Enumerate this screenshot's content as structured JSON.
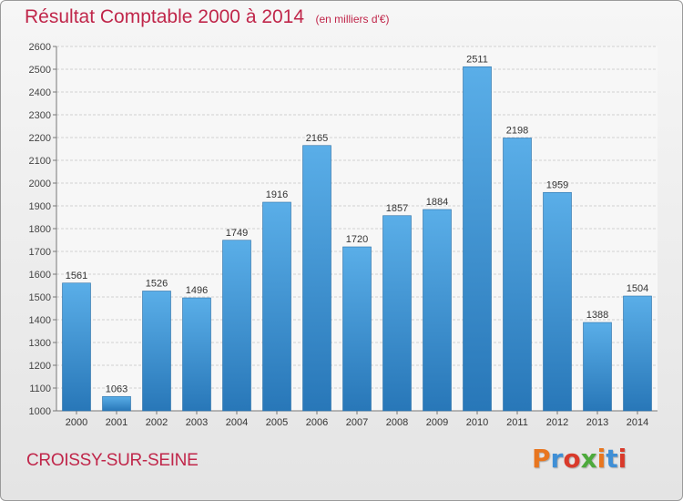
{
  "header": {
    "title": "Résultat Comptable 2000 à 2014",
    "subtitle": "(en milliers d'€)"
  },
  "footer": {
    "city": "CROISSY-SUR-SEINE",
    "logo_text": "Proxiti"
  },
  "colors": {
    "title": "#c0264a",
    "bar_top": "#5aaee8",
    "bar_bottom": "#2877b8"
  },
  "chart_data": {
    "type": "bar",
    "categories": [
      "2000",
      "2001",
      "2002",
      "2003",
      "2004",
      "2005",
      "2006",
      "2007",
      "2008",
      "2009",
      "2010",
      "2011",
      "2012",
      "2013",
      "2014"
    ],
    "values": [
      1561,
      1063,
      1526,
      1496,
      1749,
      1916,
      2165,
      1720,
      1857,
      1884,
      2511,
      2198,
      1959,
      1388,
      1504
    ],
    "title": "Résultat Comptable 2000 à 2014",
    "subtitle": "(en milliers d'€)",
    "xlabel": "",
    "ylabel": "",
    "ylim": [
      1000,
      2600
    ],
    "yticks": [
      1000,
      1100,
      1200,
      1300,
      1400,
      1500,
      1600,
      1700,
      1800,
      1900,
      2000,
      2100,
      2200,
      2300,
      2400,
      2500,
      2600
    ],
    "grid": true,
    "legend": "none",
    "data_labels": true
  }
}
